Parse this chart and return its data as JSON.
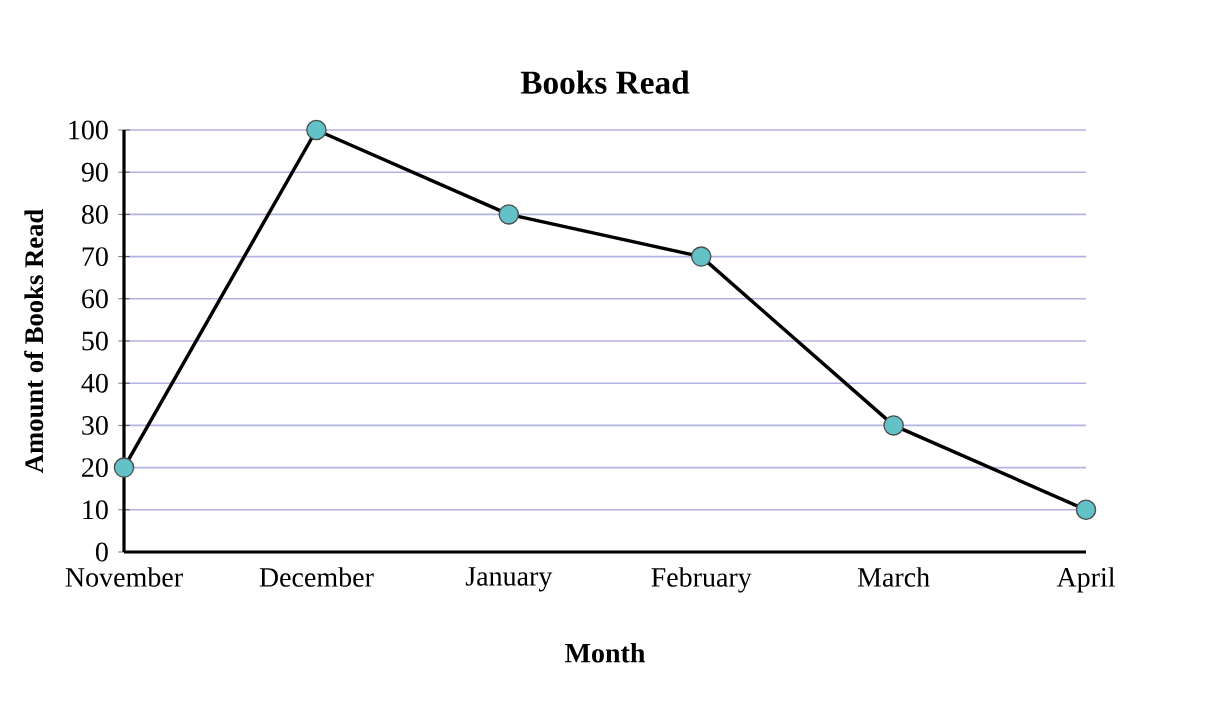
{
  "chart_data": {
    "type": "line",
    "title": "Books Read",
    "xlabel": "Month",
    "ylabel": "Amount of Books Read",
    "categories": [
      "November",
      "December",
      "January",
      "February",
      "March",
      "April"
    ],
    "series": [
      {
        "color": "#62c2c8",
        "values": [
          20,
          100,
          80,
          70,
          30,
          10
        ]
      }
    ],
    "ylim": [
      0,
      100
    ],
    "yticks": [
      0,
      10,
      20,
      30,
      40,
      50,
      60,
      70,
      80,
      90,
      100
    ],
    "grid": "y",
    "marker": "circle",
    "line_style": "solid"
  }
}
